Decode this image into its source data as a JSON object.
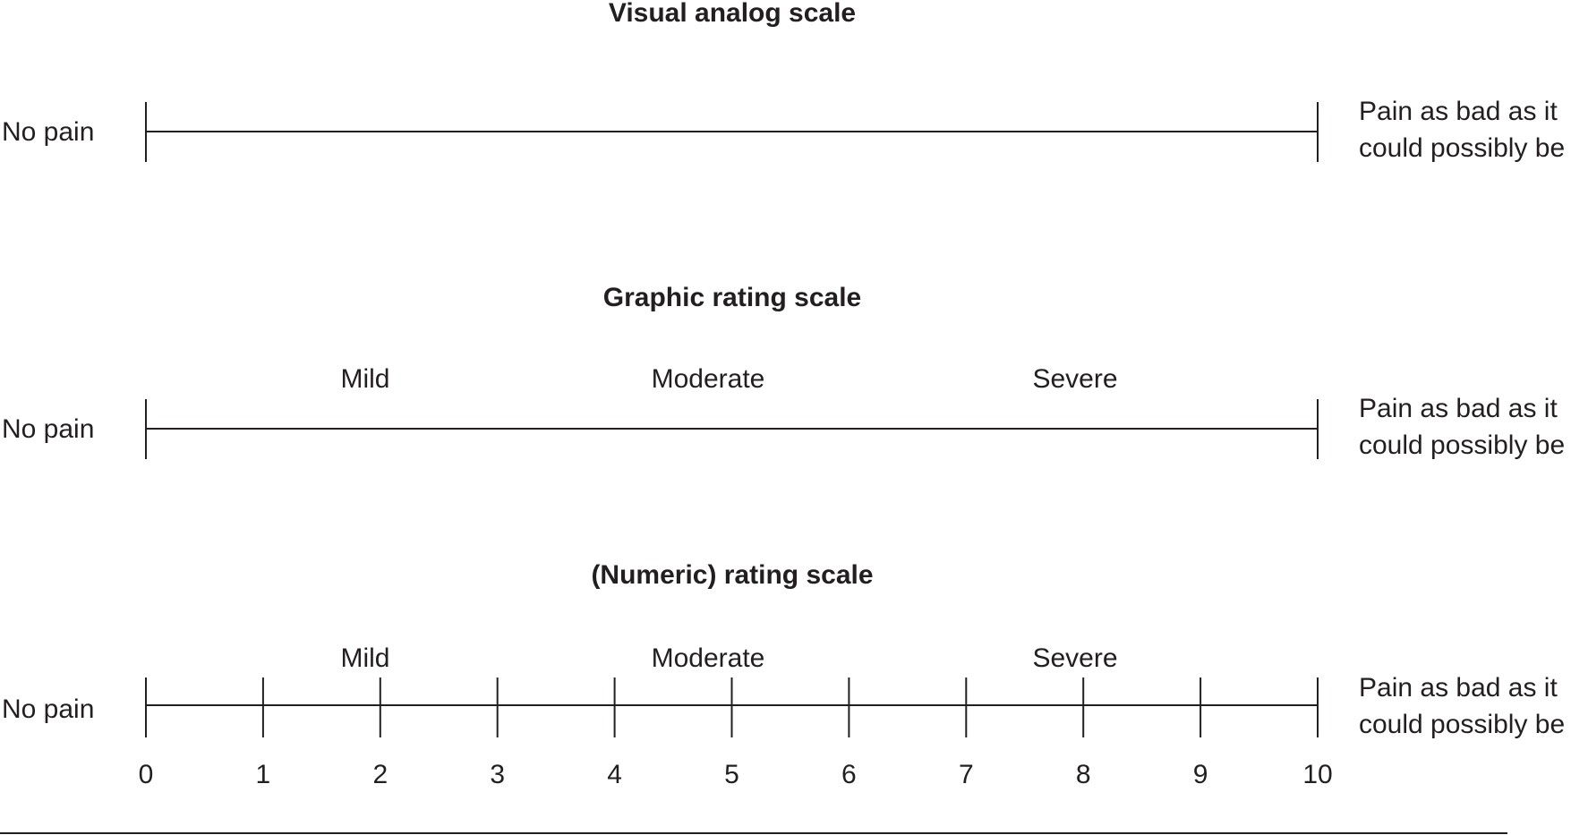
{
  "scales": [
    {
      "title": "Visual analog scale",
      "left_label": "No pain",
      "right_label_lines": [
        "Pain as bad as it",
        "could possibly be"
      ],
      "categories": [],
      "numbers": []
    },
    {
      "title": "Graphic rating scale",
      "left_label": "No pain",
      "right_label_lines": [
        "Pain as bad as it",
        "could possibly be"
      ],
      "categories": [
        "Mild",
        "Moderate",
        "Severe"
      ],
      "numbers": []
    },
    {
      "title": "(Numeric) rating scale",
      "left_label": "No pain",
      "right_label_lines": [
        "Pain as bad as it",
        "could possibly be"
      ],
      "categories": [
        "Mild",
        "Moderate",
        "Severe"
      ],
      "numbers": [
        "0",
        "1",
        "2",
        "3",
        "4",
        "5",
        "6",
        "7",
        "8",
        "9",
        "10"
      ]
    }
  ]
}
